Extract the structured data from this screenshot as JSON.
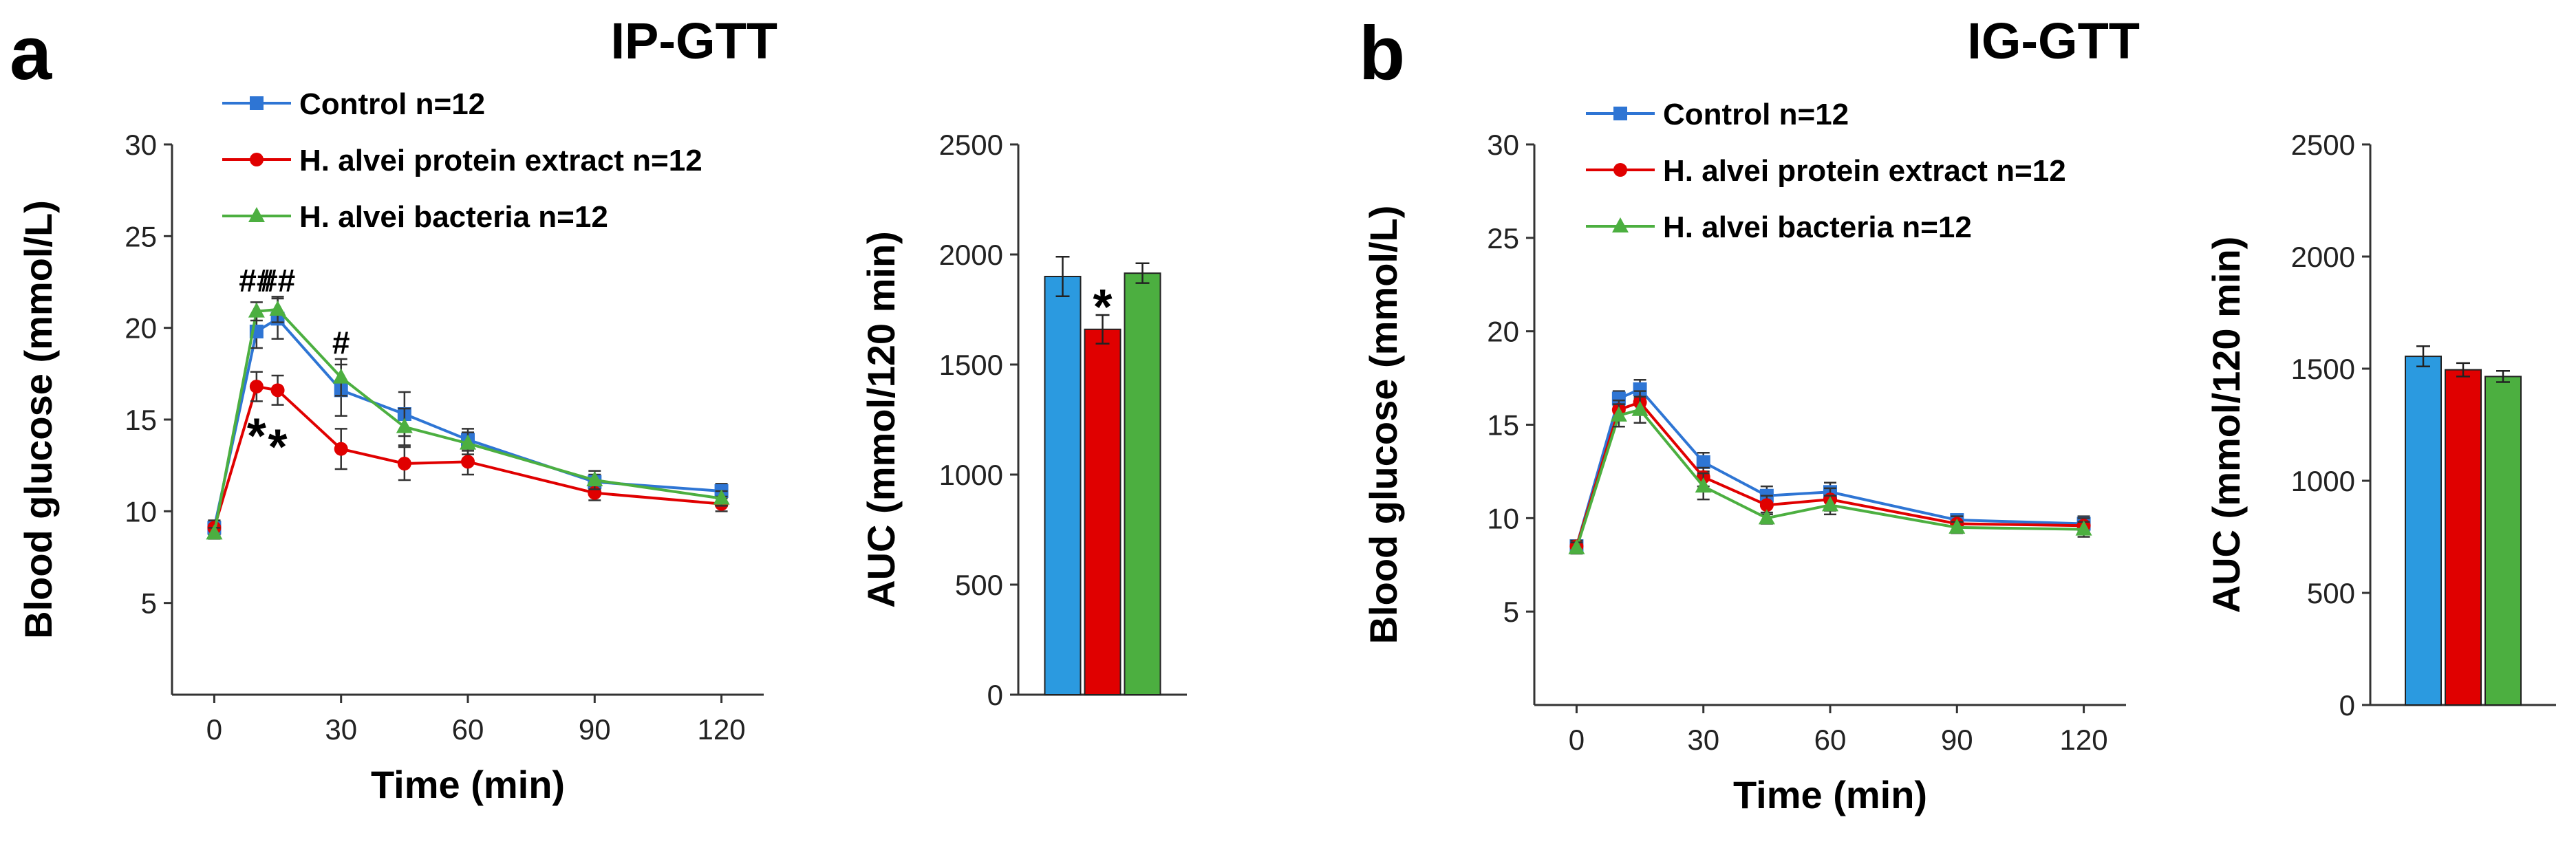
{
  "panels": [
    {
      "letter": "a",
      "title": "IP-GTT",
      "legend": [
        "Control n=12",
        "H. alvei protein extract n=12",
        "H. alvei bacteria n=12"
      ],
      "line_annotations": [
        {
          "text": "##",
          "x": 10,
          "y": 22
        },
        {
          "text": "##",
          "x": 15,
          "y": 22
        },
        {
          "text": "#",
          "x": 30,
          "y": 18.6
        },
        {
          "text": "*",
          "x": 10,
          "y": 14.3
        },
        {
          "text": "*",
          "x": 15,
          "y": 13.7
        }
      ],
      "bar_annotations": [
        {
          "text": "*",
          "bar": 1,
          "y": 1810
        }
      ]
    },
    {
      "letter": "b",
      "title": "IG-GTT",
      "legend": [
        "Control n=12",
        "H. alvei protein extract n=12",
        "H. alvei bacteria n=12"
      ],
      "line_annotations": [],
      "bar_annotations": []
    }
  ],
  "chart_data": [
    {
      "type": "line",
      "title": "IP-GTT",
      "xlabel": "Time (min)",
      "ylabel": "Blood glucose (mmol/L)",
      "x": [
        0,
        10,
        15,
        30,
        45,
        60,
        90,
        120
      ],
      "xticks": [
        0,
        30,
        60,
        90,
        120
      ],
      "yticks": [
        5,
        10,
        15,
        20,
        25,
        30
      ],
      "xlim": [
        -10,
        130
      ],
      "ylim": [
        0,
        30
      ],
      "grid": false,
      "legend_position": "top-left",
      "series": [
        {
          "name": "Control n=12",
          "color": "#2e75d4",
          "marker": "square",
          "values": [
            9.1,
            19.8,
            20.5,
            16.6,
            15.3,
            13.9,
            11.6,
            11.1
          ],
          "errors": [
            0.4,
            0.9,
            1.1,
            1.4,
            1.2,
            0.6,
            0.4,
            0.4
          ]
        },
        {
          "name": "H. alvei protein extract n=12",
          "color": "#e00000",
          "marker": "circle",
          "values": [
            9.1,
            16.8,
            16.6,
            13.4,
            12.6,
            12.7,
            11.0,
            10.4
          ],
          "errors": [
            0.4,
            0.8,
            0.8,
            1.1,
            0.9,
            0.7,
            0.4,
            0.4
          ]
        },
        {
          "name": "H. alvei bacteria n=12",
          "color": "#4caf40",
          "marker": "triangle",
          "values": [
            8.8,
            20.9,
            21.0,
            17.3,
            14.6,
            13.7,
            11.7,
            10.7
          ],
          "errors": [
            0.3,
            0.5,
            0.7,
            1.0,
            1.0,
            0.6,
            0.5,
            0.4
          ]
        }
      ]
    },
    {
      "type": "bar",
      "ylabel": "AUC (mmol/120 min)",
      "categories": [
        "Control n=12",
        "H. alvei protein extract n=12",
        "H. alvei bacteria n=12"
      ],
      "values": [
        1900,
        1660,
        1915
      ],
      "errors": [
        90,
        65,
        45
      ],
      "colors": [
        "#2b9ae0",
        "#e00000",
        "#4caf40"
      ],
      "yticks": [
        0,
        500,
        1000,
        1500,
        2000,
        2500
      ],
      "ylim": [
        0,
        2500
      ]
    },
    {
      "type": "line",
      "title": "IG-GTT",
      "xlabel": "Time (min)",
      "ylabel": "Blood glucose (mmol/L)",
      "x": [
        0,
        10,
        15,
        30,
        45,
        60,
        90,
        120
      ],
      "xticks": [
        0,
        30,
        60,
        90,
        120
      ],
      "yticks": [
        5,
        10,
        15,
        20,
        25,
        30
      ],
      "xlim": [
        -10,
        130
      ],
      "ylim": [
        0,
        30
      ],
      "grid": false,
      "legend_position": "top-left",
      "series": [
        {
          "name": "Control n=12",
          "color": "#2e75d4",
          "marker": "square",
          "values": [
            8.5,
            16.4,
            16.9,
            13.0,
            11.2,
            11.4,
            9.9,
            9.7
          ],
          "errors": [
            0.3,
            0.4,
            0.5,
            0.5,
            0.5,
            0.5,
            0.3,
            0.4
          ]
        },
        {
          "name": "H. alvei protein extract n=12",
          "color": "#e00000",
          "marker": "circle",
          "values": [
            8.5,
            15.8,
            16.2,
            12.2,
            10.7,
            11.0,
            9.7,
            9.6
          ],
          "errors": [
            0.3,
            0.5,
            0.6,
            0.5,
            0.5,
            0.6,
            0.4,
            0.4
          ]
        },
        {
          "name": "H. alvei bacteria n=12",
          "color": "#4caf40",
          "marker": "triangle",
          "values": [
            8.4,
            15.5,
            15.8,
            11.7,
            10.0,
            10.7,
            9.5,
            9.4
          ],
          "errors": [
            0.3,
            0.6,
            0.7,
            0.7,
            0.3,
            0.5,
            0.3,
            0.4
          ]
        }
      ]
    },
    {
      "type": "bar",
      "ylabel": "AUC (mmol/120 min)",
      "categories": [
        "Control n=12",
        "H. alvei protein extract n=12",
        "H. alvei bacteria n=12"
      ],
      "values": [
        1555,
        1495,
        1465
      ],
      "errors": [
        45,
        30,
        25
      ],
      "colors": [
        "#2b9ae0",
        "#e00000",
        "#4caf40"
      ],
      "yticks": [
        0,
        500,
        1000,
        1500,
        2000,
        2500
      ],
      "ylim": [
        0,
        2500
      ]
    }
  ]
}
